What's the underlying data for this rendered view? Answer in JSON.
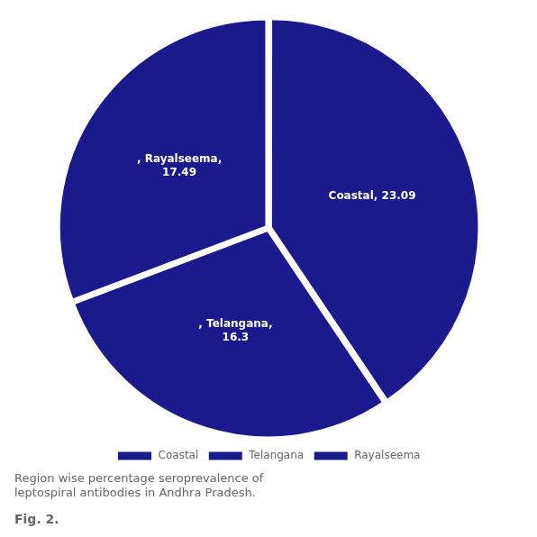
{
  "chart_data": {
    "type": "pie",
    "title": "Fig. 2.",
    "subtitle": "Region wise percentage seroprevalence of\nleptospiral antibodies in Andhra Pradesh.",
    "categories": [
      "Coastal",
      "Telangana",
      "Rayalseema"
    ],
    "values": [
      23.09,
      16.3,
      17.49
    ],
    "value_labels": [
      "Coastal, 23.09",
      ", Telangana,\n16.3",
      ", Rayalseema,\n17.49"
    ],
    "data_labels": true,
    "colors": [
      "#1a1a8c",
      "#1a1a8c",
      "#1a1a8c"
    ],
    "legend": "bottom"
  }
}
